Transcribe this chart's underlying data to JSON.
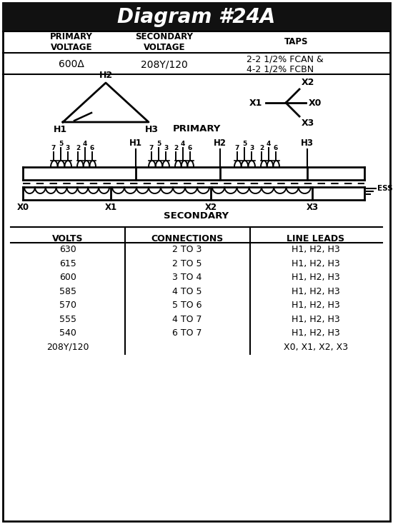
{
  "title": "Diagram #24A",
  "title_bg": "#1a1a1a",
  "title_color": "#ffffff",
  "primary_voltage": "600Δ",
  "secondary_voltage": "208Y/120",
  "taps_line1": "2-2 1/2% FCAN &",
  "taps_line2": "4-2 1/2% FCBN",
  "table_rows": [
    [
      "630",
      "2 TO 3",
      "H1, H2, H3"
    ],
    [
      "615",
      "2 TO 5",
      "H1, H2, H3"
    ],
    [
      "600",
      "3 TO 4",
      "H1, H2, H3"
    ],
    [
      "585",
      "4 TO 5",
      "H1, H2, H3"
    ],
    [
      "570",
      "5 TO 6",
      "H1, H2, H3"
    ],
    [
      "555",
      "4 TO 7",
      "H1, H2, H3"
    ],
    [
      "540",
      "6 TO 7",
      "H1, H2, H3"
    ],
    [
      "208Y/120",
      "",
      "X0, X1, X2, X3"
    ]
  ],
  "col_headers": [
    "VOLTS",
    "CONNECTIONS",
    "LINE LEADS"
  ],
  "bg_color": "#ffffff"
}
